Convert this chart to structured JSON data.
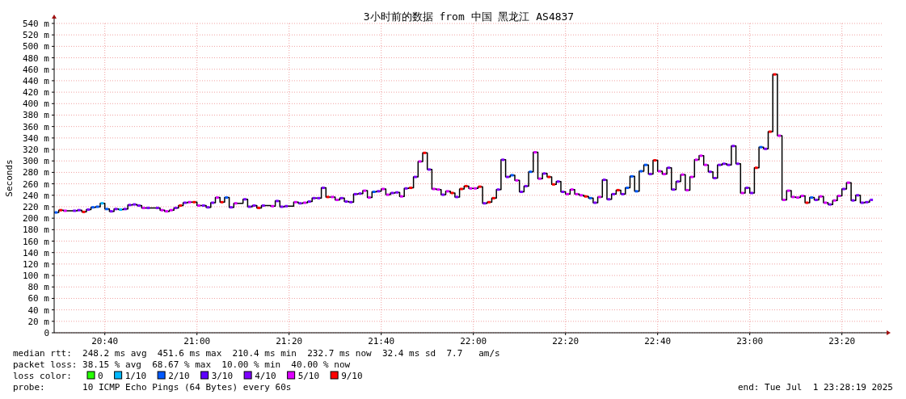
{
  "chart_data": {
    "type": "scatter",
    "title": "3小时前的数据 from 中国 黑龙江 AS4837",
    "ylabel": "Seconds",
    "x": [
      "2025-07-01T20:29",
      "2025-07-01T20:30",
      "2025-07-01T20:31",
      "2025-07-01T20:33",
      "2025-07-01T20:34",
      "2025-07-01T20:35",
      "2025-07-01T20:36",
      "2025-07-01T20:37",
      "2025-07-01T20:38",
      "2025-07-01T20:39",
      "2025-07-01T20:40",
      "2025-07-01T20:41",
      "2025-07-01T20:42",
      "2025-07-01T20:43",
      "2025-07-01T20:44",
      "2025-07-01T20:45",
      "2025-07-01T20:46",
      "2025-07-01T20:47",
      "2025-07-01T20:48",
      "2025-07-01T20:49",
      "2025-07-01T20:51",
      "2025-07-01T20:52",
      "2025-07-01T20:53",
      "2025-07-01T20:54",
      "2025-07-01T20:55",
      "2025-07-01T20:56",
      "2025-07-01T20:57",
      "2025-07-01T20:58",
      "2025-07-01T20:59",
      "2025-07-01T21:00",
      "2025-07-01T21:01",
      "2025-07-01T21:02",
      "2025-07-01T21:03",
      "2025-07-01T21:04",
      "2025-07-01T21:05",
      "2025-07-01T21:06",
      "2025-07-01T21:07",
      "2025-07-01T21:08",
      "2025-07-01T21:10",
      "2025-07-01T21:11",
      "2025-07-01T21:12",
      "2025-07-01T21:13",
      "2025-07-01T21:14",
      "2025-07-01T21:16",
      "2025-07-01T21:17",
      "2025-07-01T21:18",
      "2025-07-01T21:19",
      "2025-07-01T21:21",
      "2025-07-01T21:22",
      "2025-07-01T21:23",
      "2025-07-01T21:24",
      "2025-07-01T21:25",
      "2025-07-01T21:26",
      "2025-07-01T21:27",
      "2025-07-01T21:28",
      "2025-07-01T21:29",
      "2025-07-01T21:30",
      "2025-07-01T21:31",
      "2025-07-01T21:32",
      "2025-07-01T21:33",
      "2025-07-01T21:34",
      "2025-07-01T21:35",
      "2025-07-01T21:36",
      "2025-07-01T21:37",
      "2025-07-01T21:38",
      "2025-07-01T21:39",
      "2025-07-01T21:40",
      "2025-07-01T21:41",
      "2025-07-01T21:42",
      "2025-07-01T21:43",
      "2025-07-01T21:44",
      "2025-07-01T21:45",
      "2025-07-01T21:46",
      "2025-07-01T21:47",
      "2025-07-01T21:48",
      "2025-07-01T21:49",
      "2025-07-01T21:50",
      "2025-07-01T21:51",
      "2025-07-01T21:52",
      "2025-07-01T21:53",
      "2025-07-01T21:54",
      "2025-07-01T21:55",
      "2025-07-01T21:56",
      "2025-07-01T21:57",
      "2025-07-01T21:58",
      "2025-07-01T21:59",
      "2025-07-01T22:00",
      "2025-07-01T22:01",
      "2025-07-01T22:02",
      "2025-07-01T22:03",
      "2025-07-01T22:04",
      "2025-07-01T22:05",
      "2025-07-01T22:06",
      "2025-07-01T22:07",
      "2025-07-01T22:08",
      "2025-07-01T22:09",
      "2025-07-01T22:10",
      "2025-07-01T22:11",
      "2025-07-01T22:12",
      "2025-07-01T22:13",
      "2025-07-01T22:14",
      "2025-07-01T22:15",
      "2025-07-01T22:16",
      "2025-07-01T22:17",
      "2025-07-01T22:18",
      "2025-07-01T22:19",
      "2025-07-01T22:20",
      "2025-07-01T22:21",
      "2025-07-01T22:22",
      "2025-07-01T22:23",
      "2025-07-01T22:24",
      "2025-07-01T22:25",
      "2025-07-01T22:26",
      "2025-07-01T22:27",
      "2025-07-01T22:28",
      "2025-07-01T22:29",
      "2025-07-01T22:30",
      "2025-07-01T22:31",
      "2025-07-01T22:32",
      "2025-07-01T22:33",
      "2025-07-01T22:34",
      "2025-07-01T22:35",
      "2025-07-01T22:36",
      "2025-07-01T22:37",
      "2025-07-01T22:38",
      "2025-07-01T22:39",
      "2025-07-01T22:40",
      "2025-07-01T22:41",
      "2025-07-01T22:42",
      "2025-07-01T22:43",
      "2025-07-01T22:44",
      "2025-07-01T22:45",
      "2025-07-01T22:46",
      "2025-07-01T22:47",
      "2025-07-01T22:48",
      "2025-07-01T22:49",
      "2025-07-01T22:50",
      "2025-07-01T22:51",
      "2025-07-01T22:52",
      "2025-07-01T22:53",
      "2025-07-01T22:54",
      "2025-07-01T22:55",
      "2025-07-01T22:56",
      "2025-07-01T22:57",
      "2025-07-01T22:58",
      "2025-07-01T22:59",
      "2025-07-01T23:00",
      "2025-07-01T23:01",
      "2025-07-01T23:02",
      "2025-07-01T23:03",
      "2025-07-01T23:04",
      "2025-07-01T23:05",
      "2025-07-01T23:06",
      "2025-07-01T23:07",
      "2025-07-01T23:08",
      "2025-07-01T23:09",
      "2025-07-01T23:10",
      "2025-07-01T23:11",
      "2025-07-01T23:12",
      "2025-07-01T23:13",
      "2025-07-01T23:14",
      "2025-07-01T23:15",
      "2025-07-01T23:16",
      "2025-07-01T23:17",
      "2025-07-01T23:18",
      "2025-07-01T23:19",
      "2025-07-01T23:20",
      "2025-07-01T23:21",
      "2025-07-01T23:22",
      "2025-07-01T23:23",
      "2025-07-01T23:24",
      "2025-07-01T23:25",
      "2025-07-01T23:26"
    ],
    "series": [
      {
        "type": "step",
        "color": "#000000",
        "values": [
          210,
          214,
          213,
          213,
          214,
          211,
          215,
          219,
          220,
          226,
          216,
          212,
          216,
          215,
          216,
          223,
          224,
          222,
          218,
          218,
          218,
          214,
          212,
          214,
          218,
          222,
          227,
          228,
          228,
          222,
          222,
          219,
          227,
          236,
          228,
          236,
          219,
          226,
          233,
          220,
          222,
          218,
          222,
          221,
          230,
          220,
          221,
          228,
          226,
          227,
          229,
          235,
          235,
          253,
          237,
          237,
          232,
          235,
          229,
          228,
          242,
          243,
          248,
          236,
          246,
          247,
          251,
          241,
          244,
          245,
          238,
          252,
          253,
          272,
          299,
          314,
          285,
          251,
          250,
          241,
          247,
          244,
          237,
          251,
          256,
          252,
          252,
          255,
          226,
          228,
          235,
          250,
          302,
          272,
          275,
          266,
          246,
          256,
          281,
          315,
          269,
          278,
          272,
          259,
          264,
          246,
          242,
          250,
          242,
          240,
          238,
          235,
          227,
          237,
          267,
          233,
          242,
          249,
          242,
          253,
          273,
          247,
          282,
          293,
          277,
          301,
          282,
          277,
          288,
          250,
          264,
          276,
          249,
          272,
          302,
          309,
          293,
          281,
          270,
          293,
          295,
          293,
          326,
          295,
          244,
          253,
          244,
          288,
          324,
          321,
          351,
          451,
          344,
          232,
          248,
          237,
          236,
          239,
          227,
          236,
          232,
          238,
          227,
          224,
          231,
          239,
          251,
          262,
          231,
          240,
          227,
          228,
          232
        ]
      },
      {
        "name": "0",
        "color": "#26ff00",
        "values": [
          null,
          null,
          null,
          null,
          null,
          null,
          null,
          null,
          null,
          null,
          null,
          null,
          null,
          null,
          null,
          null,
          null,
          null,
          null,
          null,
          null,
          null,
          null,
          null,
          null,
          null,
          null,
          null,
          null,
          null,
          null,
          null,
          null,
          null,
          null,
          null,
          null,
          null,
          null,
          null,
          null,
          null,
          null,
          null,
          null,
          null,
          null,
          null,
          null,
          null,
          null,
          null,
          null,
          null,
          null,
          null,
          null,
          null,
          null,
          null,
          null,
          null,
          null,
          null,
          null,
          null,
          null,
          null,
          null,
          null,
          null,
          null,
          null,
          null,
          null,
          null,
          null,
          null,
          null,
          null,
          null,
          null,
          null,
          null,
          null,
          null,
          null,
          null,
          null,
          null,
          null,
          null,
          null,
          null,
          null,
          null,
          null,
          null,
          null,
          null,
          null,
          null,
          null,
          null,
          null,
          null,
          null,
          null,
          null,
          null,
          null,
          null,
          null,
          null,
          null,
          null,
          null,
          null,
          null,
          null,
          null,
          null,
          null,
          null,
          null,
          null,
          null,
          null,
          null,
          null,
          null,
          null,
          null,
          null,
          null,
          null,
          null,
          null,
          null,
          null,
          null,
          null,
          null,
          null,
          null,
          null,
          null,
          null,
          null,
          null,
          null,
          null,
          null,
          null,
          null,
          null,
          null,
          null,
          null,
          null,
          null,
          null,
          null,
          null,
          null,
          null,
          null,
          null,
          null,
          null,
          null,
          null,
          null
        ]
      },
      {
        "name": "1/10",
        "color": "#00b8ff",
        "x": [
          "2025-07-01T20:39",
          "2025-07-01T20:43"
        ],
        "values": [
          226,
          215
        ]
      },
      {
        "name": "2/10",
        "color": "#0059ff",
        "x": [
          "2025-07-01T20:29",
          "2025-07-01T20:37",
          "2025-07-01T20:38",
          "2025-07-01T20:40",
          "2025-07-01T21:06",
          "2025-07-01T21:38",
          "2025-07-01T22:08",
          "2025-07-01T22:12",
          "2025-07-01T22:25",
          "2025-07-01T22:33",
          "2025-07-01T22:34",
          "2025-07-01T22:35",
          "2025-07-01T22:36",
          "2025-07-01T22:37",
          "2025-07-01T23:02",
          "2025-07-01T23:13"
        ],
        "values": [
          210,
          219,
          220,
          216,
          236,
          246,
          275,
          281,
          235,
          253,
          273,
          247,
          282,
          293,
          324,
          236
        ]
      },
      {
        "name": "3/10",
        "color": "#5e00ff",
        "values": [
          null,
          null,
          null,
          null,
          null,
          null,
          null,
          null,
          null,
          null,
          null,
          null,
          null,
          null,
          null,
          null,
          null,
          null,
          null,
          null,
          null,
          null,
          null,
          null,
          null,
          null,
          null,
          null,
          null,
          null,
          null,
          null,
          null,
          null,
          null,
          null,
          null,
          null,
          null,
          null,
          null,
          null,
          null,
          null,
          null,
          null,
          null,
          null,
          null,
          null,
          null,
          null,
          null,
          null,
          null,
          null,
          null,
          null,
          null,
          null,
          null,
          null,
          null,
          null,
          null,
          null,
          null,
          null,
          null,
          null,
          null,
          null,
          null,
          null,
          null,
          null,
          null,
          null,
          null,
          null,
          null,
          null,
          null,
          null,
          null,
          null,
          null,
          null,
          null,
          null,
          null,
          null,
          null,
          null,
          null,
          null,
          null,
          null,
          null,
          null,
          null,
          null,
          null,
          null,
          null,
          null,
          null,
          null,
          null,
          null,
          null,
          null,
          null,
          null,
          null,
          null,
          null,
          null,
          null,
          null,
          null,
          null,
          null,
          null,
          null,
          null,
          null,
          null,
          null,
          null,
          null,
          null,
          null,
          null,
          null,
          null,
          null,
          null,
          null,
          null,
          null,
          null,
          null,
          null,
          null,
          null,
          null,
          null,
          null,
          null,
          null,
          null,
          null,
          null,
          null,
          null,
          null,
          null,
          null,
          null,
          null,
          null,
          null,
          null,
          null,
          null,
          null,
          null,
          null,
          null,
          null,
          null,
          null
        ]
      },
      {
        "name": "4/10",
        "color": "#7e00ff",
        "x": [
          "2025-07-01T20:33",
          "2025-07-01T20:34",
          "2025-07-01T20:36",
          "2025-07-01T20:41",
          "2025-07-01T20:42",
          "2025-07-01T20:44",
          "2025-07-01T20:45",
          "2025-07-01T20:46",
          "2025-07-01T20:47",
          "2025-07-01T20:49",
          "2025-07-01T20:51",
          "2025-07-01T20:55",
          "2025-07-01T20:57",
          "2025-07-01T21:01",
          "2025-07-01T21:02",
          "2025-07-01T21:03",
          "2025-07-01T21:07",
          "2025-07-01T21:10",
          "2025-07-01T21:11",
          "2025-07-01T21:12",
          "2025-07-01T21:14",
          "2025-07-01T21:17",
          "2025-07-01T21:18",
          "2025-07-01T21:19",
          "2025-07-01T21:22",
          "2025-07-01T21:24",
          "2025-07-01T21:25",
          "2025-07-01T21:26",
          "2025-07-01T21:27",
          "2025-07-01T21:31",
          "2025-07-01T21:32",
          "2025-07-01T21:33",
          "2025-07-01T21:34",
          "2025-07-01T21:35",
          "2025-07-01T21:39",
          "2025-07-01T21:42",
          "2025-07-01T21:43",
          "2025-07-01T21:45",
          "2025-07-01T21:47",
          "2025-07-01T21:50",
          "2025-07-01T21:53",
          "2025-07-01T21:56",
          "2025-07-01T22:02",
          "2025-07-01T22:05",
          "2025-07-01T22:06",
          "2025-07-01T22:07",
          "2025-07-01T22:10",
          "2025-07-01T22:11",
          "2025-07-01T22:15",
          "2025-07-01T22:18",
          "2025-07-01T22:19",
          "2025-07-01T22:26",
          "2025-07-01T22:28",
          "2025-07-01T22:29",
          "2025-07-01T22:30",
          "2025-07-01T22:32",
          "2025-07-01T22:38",
          "2025-07-01T22:42",
          "2025-07-01T22:43",
          "2025-07-01T22:44",
          "2025-07-01T22:51",
          "2025-07-01T22:52",
          "2025-07-01T22:53",
          "2025-07-01T22:54",
          "2025-07-01T22:55",
          "2025-07-01T22:56",
          "2025-07-01T22:57",
          "2025-07-01T22:59",
          "2025-07-01T23:00",
          "2025-07-01T23:03",
          "2025-07-01T23:14",
          "2025-07-01T23:17",
          "2025-07-01T23:20",
          "2025-07-01T23:22",
          "2025-07-01T23:23",
          "2025-07-01T23:24",
          "2025-07-01T23:25",
          "2025-07-01T23:26"
        ],
        "values": [
          213,
          214,
          215,
          212,
          216,
          216,
          223,
          224,
          222,
          218,
          218,
          218,
          227,
          222,
          219,
          227,
          219,
          233,
          220,
          222,
          222,
          230,
          220,
          221,
          226,
          229,
          235,
          235,
          253,
          235,
          229,
          228,
          242,
          243,
          247,
          244,
          245,
          252,
          272,
          285,
          241,
          237,
          226,
          250,
          302,
          272,
          246,
          256,
          278,
          264,
          246,
          227,
          267,
          233,
          242,
          242,
          277,
          288,
          250,
          264,
          281,
          270,
          293,
          295,
          293,
          326,
          295,
          253,
          244,
          321,
          232,
          224,
          251,
          231,
          240,
          227,
          228,
          232
        ]
      },
      {
        "name": "5/10",
        "color": "#dd00ff",
        "x": [
          "2025-07-01T20:31",
          "2025-07-01T20:48",
          "2025-07-01T20:52",
          "2025-07-01T20:53",
          "2025-07-01T20:54",
          "2025-07-01T20:58",
          "2025-07-01T21:00",
          "2025-07-01T21:04",
          "2025-07-01T21:08",
          "2025-07-01T21:16",
          "2025-07-01T21:21",
          "2025-07-01T21:23",
          "2025-07-01T21:29",
          "2025-07-01T21:30",
          "2025-07-01T21:36",
          "2025-07-01T21:37",
          "2025-07-01T21:40",
          "2025-07-01T21:41",
          "2025-07-01T21:44",
          "2025-07-01T21:48",
          "2025-07-01T21:51",
          "2025-07-01T21:52",
          "2025-07-01T21:54",
          "2025-07-01T21:59",
          "2025-07-01T22:00",
          "2025-07-01T22:09",
          "2025-07-01T22:13",
          "2025-07-01T22:14",
          "2025-07-01T22:20",
          "2025-07-01T22:21",
          "2025-07-01T22:22",
          "2025-07-01T22:23",
          "2025-07-01T22:27",
          "2025-07-01T22:40",
          "2025-07-01T22:41",
          "2025-07-01T22:45",
          "2025-07-01T22:46",
          "2025-07-01T22:47",
          "2025-07-01T22:48",
          "2025-07-01T22:49",
          "2025-07-01T22:50",
          "2025-07-01T22:58",
          "2025-07-01T23:06",
          "2025-07-01T23:07",
          "2025-07-01T23:08",
          "2025-07-01T23:09",
          "2025-07-01T23:10",
          "2025-07-01T23:11",
          "2025-07-01T23:15",
          "2025-07-01T23:16",
          "2025-07-01T23:18",
          "2025-07-01T23:19",
          "2025-07-01T23:21"
        ],
        "values": [
          213,
          218,
          214,
          212,
          214,
          228,
          222,
          236,
          226,
          221,
          228,
          227,
          237,
          232,
          248,
          236,
          251,
          241,
          238,
          299,
          251,
          250,
          247,
          252,
          252,
          266,
          315,
          269,
          242,
          250,
          242,
          240,
          237,
          282,
          277,
          276,
          249,
          272,
          302,
          309,
          293,
          244,
          344,
          232,
          248,
          237,
          236,
          239,
          238,
          227,
          231,
          239,
          262
        ]
      },
      {
        "name": "9/10",
        "color": "#ff0000",
        "x": [
          "2025-07-01T20:30",
          "2025-07-01T20:35",
          "2025-07-01T20:56",
          "2025-07-01T20:59",
          "2025-07-01T21:05",
          "2025-07-01T21:13",
          "2025-07-01T21:28",
          "2025-07-01T21:46",
          "2025-07-01T21:49",
          "2025-07-01T21:55",
          "2025-07-01T21:57",
          "2025-07-01T21:58",
          "2025-07-01T22:01",
          "2025-07-01T22:03",
          "2025-07-01T22:04",
          "2025-07-01T22:16",
          "2025-07-01T22:17",
          "2025-07-01T22:24",
          "2025-07-01T22:31",
          "2025-07-01T22:39",
          "2025-07-01T23:01",
          "2025-07-01T23:04",
          "2025-07-01T23:05",
          "2025-07-01T23:12"
        ],
        "values": [
          214,
          211,
          222,
          228,
          228,
          218,
          237,
          253,
          314,
          244,
          251,
          256,
          255,
          228,
          235,
          272,
          259,
          238,
          249,
          301,
          288,
          351,
          451,
          227
        ]
      }
    ],
    "legend": "bottom",
    "legend_title": "loss color:",
    "grid": true,
    "xlim": [
      "2025-07-01T20:29",
      "2025-07-01T23:29"
    ],
    "xticks": [
      {
        "value": "2025-07-01T20:40",
        "label": "20:40"
      },
      {
        "value": "2025-07-01T21:00",
        "label": "21:00"
      },
      {
        "value": "2025-07-01T21:20",
        "label": "21:20"
      },
      {
        "value": "2025-07-01T21:40",
        "label": "21:40"
      },
      {
        "value": "2025-07-01T22:00",
        "label": "22:00"
      },
      {
        "value": "2025-07-01T22:20",
        "label": "22:20"
      },
      {
        "value": "2025-07-01T22:40",
        "label": "22:40"
      },
      {
        "value": "2025-07-01T23:00",
        "label": "23:00"
      },
      {
        "value": "2025-07-01T23:20",
        "label": "23:20"
      }
    ],
    "ylim": [
      0,
      540
    ],
    "yticks": [
      {
        "value": 0,
        "label": "0"
      },
      {
        "value": 20,
        "label": "20 m"
      },
      {
        "value": 40,
        "label": "40 m"
      },
      {
        "value": 60,
        "label": "60 m"
      },
      {
        "value": 80,
        "label": "80 m"
      },
      {
        "value": 100,
        "label": "100 m"
      },
      {
        "value": 120,
        "label": "120 m"
      },
      {
        "value": 140,
        "label": "140 m"
      },
      {
        "value": 160,
        "label": "160 m"
      },
      {
        "value": 180,
        "label": "180 m"
      },
      {
        "value": 200,
        "label": "200 m"
      },
      {
        "value": 220,
        "label": "220 m"
      },
      {
        "value": 240,
        "label": "240 m"
      },
      {
        "value": 260,
        "label": "260 m"
      },
      {
        "value": 280,
        "label": "280 m"
      },
      {
        "value": 300,
        "label": "300 m"
      },
      {
        "value": 320,
        "label": "320 m"
      },
      {
        "value": 340,
        "label": "340 m"
      },
      {
        "value": 360,
        "label": "360 m"
      },
      {
        "value": 380,
        "label": "380 m"
      },
      {
        "value": 400,
        "label": "400 m"
      },
      {
        "value": 420,
        "label": "420 m"
      },
      {
        "value": 440,
        "label": "440 m"
      },
      {
        "value": 460,
        "label": "460 m"
      },
      {
        "value": 480,
        "label": "480 m"
      },
      {
        "value": 500,
        "label": "500 m"
      },
      {
        "value": 520,
        "label": "520 m"
      },
      {
        "value": 540,
        "label": "540 m"
      }
    ],
    "annotations": [
      "median rtt:  248.2 ms avg  451.6 ms max  210.4 ms min  232.7 ms now  32.4 ms sd  7.7   am/s",
      "packet loss: 38.15 % avg  68.67 % max  10.00 % min  40.00 % now",
      "probe:       10 ICMP Echo Pings (64 Bytes) every 60s",
      "end: Tue Jul  1 23:28:19 2025"
    ]
  }
}
